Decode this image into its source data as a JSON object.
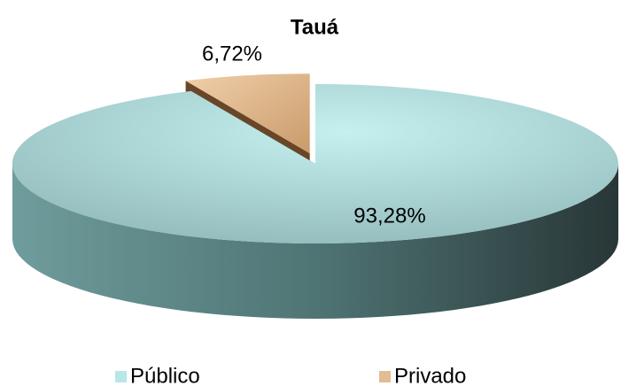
{
  "chart_data": {
    "type": "pie3d",
    "title": "Tauá",
    "categories": [
      "Público",
      "Privado"
    ],
    "values": [
      93.28,
      6.72
    ],
    "value_labels": [
      "93,28%",
      "6,72%"
    ],
    "colors": [
      "#b9e6e6",
      "#e3bc92"
    ],
    "legend": "bottom"
  }
}
